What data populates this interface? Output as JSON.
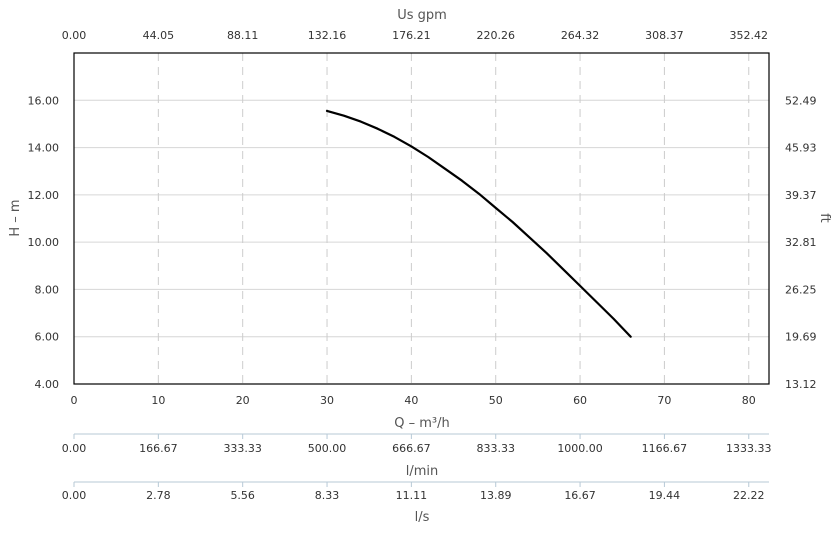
{
  "chart_data": {
    "type": "line",
    "x_title": "Q – m³/h",
    "y_title": "H – m",
    "y2_title": "ft",
    "top_title": "Us gpm",
    "xlim": [
      0,
      82.4
    ],
    "ylim": [
      4,
      18
    ],
    "grid": true,
    "x_ticks": [
      "0",
      "10",
      "20",
      "30",
      "40",
      "50",
      "60",
      "70",
      "80"
    ],
    "y_ticks": [
      "4.00",
      "6.00",
      "8.00",
      "10.00",
      "12.00",
      "14.00",
      "16.00"
    ],
    "y2_ticks": [
      "13.12",
      "19.69",
      "26.25",
      "32.81",
      "39.37",
      "45.93",
      "52.49"
    ],
    "top_ticks": [
      "0.00",
      "44.05",
      "88.11",
      "132.16",
      "176.21",
      "220.26",
      "264.32",
      "308.37",
      "352.42"
    ],
    "lmin_title": "l/min",
    "lmin_ticks": [
      "0.00",
      "166.67",
      "333.33",
      "500.00",
      "666.67",
      "833.33",
      "1000.00",
      "1166.67",
      "1333.33"
    ],
    "ls_title": "l/s",
    "ls_ticks": [
      "0.00",
      "2.78",
      "5.56",
      "8.33",
      "11.11",
      "13.89",
      "16.67",
      "19.44",
      "22.22"
    ],
    "series": [
      {
        "color": "#000000",
        "x": [
          30,
          32,
          34,
          36,
          38,
          40,
          42,
          44,
          46,
          48,
          50,
          52,
          54,
          56,
          58,
          60,
          62,
          64,
          66
        ],
        "y": [
          15.55,
          15.35,
          15.1,
          14.8,
          14.45,
          14.05,
          13.6,
          13.1,
          12.6,
          12.05,
          11.45,
          10.85,
          10.2,
          9.55,
          8.85,
          8.15,
          7.45,
          6.75,
          6.0
        ]
      }
    ]
  }
}
